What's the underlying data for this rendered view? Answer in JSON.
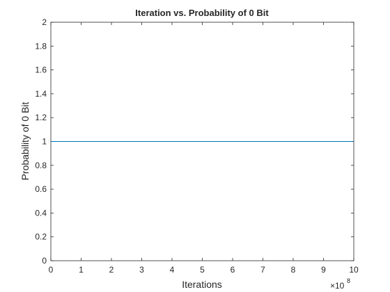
{
  "chart_data": {
    "type": "line",
    "title": "Iteration vs. Probability of 0 Bit",
    "xlabel": "Iterations",
    "ylabel": "Probability of 0 Bit",
    "xlim": [
      0,
      1000000000
    ],
    "ylim": [
      0,
      2
    ],
    "x_exponent_label": "×10",
    "x_exponent_power": "8",
    "x_ticks": [
      0,
      1,
      2,
      3,
      4,
      5,
      6,
      7,
      8,
      9,
      10
    ],
    "x_tick_labels": [
      "0",
      "1",
      "2",
      "3",
      "4",
      "5",
      "6",
      "7",
      "8",
      "9",
      "10"
    ],
    "y_ticks": [
      0,
      0.2,
      0.4,
      0.6,
      0.8,
      1,
      1.2,
      1.4,
      1.6,
      1.8,
      2
    ],
    "y_tick_labels": [
      "0",
      "0.2",
      "0.4",
      "0.6",
      "0.8",
      "1",
      "1.2",
      "1.4",
      "1.6",
      "1.8",
      "2"
    ],
    "grid": false,
    "series": [
      {
        "x": [
          0,
          1000000000
        ],
        "y": [
          1,
          1
        ],
        "color": "#0072BD"
      }
    ]
  }
}
